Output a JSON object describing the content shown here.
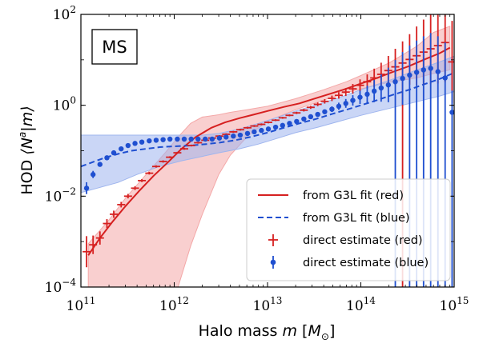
{
  "chart_data": {
    "type": "line",
    "panel_label": "MS",
    "xlabel": "Halo mass m [M_⊙]",
    "xlabel_parts": [
      "Halo mass ",
      "m",
      " [",
      "M",
      "⊙",
      "]"
    ],
    "ylabel": "HOD ⟨N^a|m⟩",
    "ylabel_parts": [
      "HOD ",
      "⟨N",
      "a",
      "|m⟩"
    ],
    "x_scale": "log",
    "y_scale": "log",
    "xlim": [
      100000000000.0,
      1000000000000000.0
    ],
    "ylim": [
      0.0001,
      100
    ],
    "x_ticks": [
      {
        "base": "10",
        "exp": "11",
        "value": 100000000000.0
      },
      {
        "base": "10",
        "exp": "12",
        "value": 1000000000000.0
      },
      {
        "base": "10",
        "exp": "13",
        "value": 10000000000000.0
      },
      {
        "base": "10",
        "exp": "14",
        "value": 100000000000000.0
      },
      {
        "base": "10",
        "exp": "15",
        "value": 1000000000000000.0
      }
    ],
    "y_ticks": [
      {
        "base": "10",
        "exp": "−4",
        "value": 0.0001
      },
      {
        "base": "10",
        "exp": "−2",
        "value": 0.01
      },
      {
        "base": "10",
        "exp": "0",
        "value": 1
      },
      {
        "base": "10",
        "exp": "2",
        "value": 100
      }
    ],
    "legend_position": "lower-right",
    "colors": {
      "red": "#d62020",
      "blue": "#1f4fd0",
      "red_band": "#f4a8a8",
      "blue_band": "#9fb5ee"
    },
    "series": [
      {
        "name": "from G3L fit (red)",
        "kind": "line",
        "style": "solid",
        "color": "#d62020",
        "x": [
          120000000000.0,
          160000000000.0,
          220000000000.0,
          300000000000.0,
          420000000000.0,
          600000000000.0,
          850000000000.0,
          1200000000000.0,
          1700000000000.0,
          2500000000000.0,
          3500000000000.0,
          5000000000000.0,
          7000000000000.0,
          10000000000000.0,
          15000000000000.0,
          22000000000000.0,
          30000000000000.0,
          45000000000000.0,
          65000000000000.0,
          100000000000000.0,
          150000000000000.0,
          220000000000000.0,
          330000000000000.0,
          500000000000000.0,
          700000000000000.0,
          900000000000000.0
        ],
        "y": [
          0.0005,
          0.0012,
          0.0028,
          0.006,
          0.013,
          0.028,
          0.055,
          0.11,
          0.2,
          0.32,
          0.42,
          0.52,
          0.62,
          0.75,
          0.92,
          1.1,
          1.35,
          1.75,
          2.2,
          3.0,
          4.0,
          5.4,
          7.3,
          10.5,
          14.0,
          18.5
        ]
      },
      {
        "name": "from G3L fit (blue)",
        "kind": "line",
        "style": "dashed",
        "color": "#1f4fd0",
        "x": [
          100000000000.0,
          130000000000.0,
          180000000000.0,
          250000000000.0,
          350000000000.0,
          500000000000.0,
          700000000000.0,
          1000000000000.0,
          1500000000000.0,
          2200000000000.0,
          3000000000000.0,
          4500000000000.0,
          6500000000000.0,
          10000000000000.0,
          15000000000000.0,
          22000000000000.0,
          33000000000000.0,
          50000000000000.0,
          70000000000000.0,
          100000000000000.0,
          150000000000000.0,
          220000000000000.0,
          330000000000000.0,
          500000000000000.0,
          700000000000000.0,
          1000000000000000.0
        ],
        "y": [
          0.045,
          0.055,
          0.07,
          0.085,
          0.1,
          0.11,
          0.12,
          0.125,
          0.13,
          0.14,
          0.15,
          0.17,
          0.2,
          0.25,
          0.32,
          0.4,
          0.5,
          0.65,
          0.8,
          1.0,
          1.3,
          1.7,
          2.2,
          3.0,
          3.8,
          5.2
        ]
      },
      {
        "name": "direct estimate (red)",
        "kind": "points",
        "marker": "plus",
        "color": "#d62020",
        "x": [
          115000000000.0,
          135000000000.0,
          160000000000.0,
          190000000000.0,
          225000000000.0,
          270000000000.0,
          320000000000.0,
          380000000000.0,
          450000000000.0,
          540000000000.0,
          640000000000.0,
          760000000000.0,
          900000000000.0,
          1080000000000.0,
          1280000000000.0,
          1520000000000.0,
          1800000000000.0,
          2150000000000.0,
          2550000000000.0,
          3050000000000.0,
          3600000000000.0,
          4300000000000.0,
          5100000000000.0,
          6100000000000.0,
          7200000000000.0,
          8600000000000.0,
          10200000000000.0,
          12200000000000.0,
          14500000000000.0,
          17200000000000.0,
          20500000000000.0,
          24500000000000.0,
          29000000000000.0,
          34500000000000.0,
          41000000000000.0,
          49000000000000.0,
          58000000000000.0,
          69000000000000.0,
          82000000000000.0,
          98000000000000.0,
          117000000000000.0,
          139000000000000.0,
          165000000000000.0,
          197000000000000.0,
          234000000000000.0,
          280000000000000.0,
          333000000000000.0,
          396000000000000.0,
          470000000000000.0,
          560000000000000.0,
          670000000000000.0,
          800000000000000.0,
          950000000000000.0
        ],
        "y": [
          0.0006,
          0.00085,
          0.0012,
          0.0025,
          0.004,
          0.0065,
          0.01,
          0.015,
          0.022,
          0.032,
          0.045,
          0.058,
          0.072,
          0.09,
          0.11,
          0.13,
          0.15,
          0.17,
          0.19,
          0.21,
          0.23,
          0.26,
          0.29,
          0.32,
          0.35,
          0.38,
          0.42,
          0.47,
          0.53,
          0.6,
          0.68,
          0.78,
          0.9,
          1.05,
          1.22,
          1.42,
          1.65,
          1.95,
          2.3,
          2.75,
          3.3,
          4.0,
          4.8,
          5.8,
          7.0,
          8.5,
          10.2,
          12.3,
          14.8,
          17.5,
          20.5,
          24.0,
          9.0
        ],
        "y_err_factor": [
          2.2,
          1.6,
          1.4,
          1.25,
          1.2,
          1.15,
          1.12,
          1.1,
          1.08,
          1.07,
          1.06,
          1.06,
          1.05,
          1.05,
          1.05,
          1.05,
          1.05,
          1.05,
          1.05,
          1.05,
          1.05,
          1.05,
          1.05,
          1.05,
          1.05,
          1.05,
          1.05,
          1.05,
          1.05,
          1.05,
          1.06,
          1.07,
          1.08,
          1.1,
          1.12,
          1.15,
          1.18,
          1.22,
          1.28,
          1.35,
          1.45,
          1.6,
          1.8,
          2.1,
          2.5,
          3.0,
          3.6,
          4.4,
          5.2,
          6.0,
          6.8,
          7.5,
          8.0
        ],
        "y_lower_to_axis": [
          false,
          false,
          false,
          false,
          false,
          false,
          false,
          false,
          false,
          false,
          false,
          false,
          false,
          false,
          false,
          false,
          false,
          false,
          false,
          false,
          false,
          false,
          false,
          false,
          false,
          false,
          false,
          false,
          false,
          false,
          false,
          false,
          false,
          false,
          false,
          false,
          false,
          false,
          false,
          false,
          false,
          false,
          false,
          false,
          false,
          true,
          false,
          false,
          false,
          false,
          false,
          false,
          false
        ]
      },
      {
        "name": "direct estimate (blue)",
        "kind": "points",
        "marker": "dot",
        "color": "#1f4fd0",
        "x": [
          115000000000.0,
          135000000000.0,
          160000000000.0,
          190000000000.0,
          225000000000.0,
          270000000000.0,
          320000000000.0,
          380000000000.0,
          450000000000.0,
          540000000000.0,
          640000000000.0,
          760000000000.0,
          900000000000.0,
          1080000000000.0,
          1280000000000.0,
          1520000000000.0,
          1800000000000.0,
          2150000000000.0,
          2550000000000.0,
          3050000000000.0,
          3600000000000.0,
          4300000000000.0,
          5100000000000.0,
          6100000000000.0,
          7200000000000.0,
          8600000000000.0,
          10200000000000.0,
          12200000000000.0,
          14500000000000.0,
          17200000000000.0,
          20500000000000.0,
          24500000000000.0,
          29000000000000.0,
          34500000000000.0,
          41000000000000.0,
          49000000000000.0,
          58000000000000.0,
          69000000000000.0,
          82000000000000.0,
          98000000000000.0,
          117000000000000.0,
          139000000000000.0,
          165000000000000.0,
          197000000000000.0,
          234000000000000.0,
          280000000000000.0,
          333000000000000.0,
          396000000000000.0,
          470000000000000.0,
          560000000000000.0,
          670000000000000.0,
          800000000000000.0,
          950000000000000.0
        ],
        "y": [
          0.015,
          0.03,
          0.05,
          0.07,
          0.09,
          0.11,
          0.13,
          0.145,
          0.155,
          0.165,
          0.17,
          0.175,
          0.18,
          0.18,
          0.18,
          0.18,
          0.18,
          0.18,
          0.18,
          0.19,
          0.2,
          0.21,
          0.22,
          0.24,
          0.26,
          0.28,
          0.3,
          0.33,
          0.36,
          0.4,
          0.44,
          0.5,
          0.56,
          0.63,
          0.72,
          0.82,
          0.95,
          1.1,
          1.28,
          1.5,
          1.75,
          2.05,
          2.4,
          2.8,
          3.3,
          3.9,
          4.6,
          5.3,
          6.0,
          6.5,
          5.5,
          4.0,
          0.7
        ],
        "y_err_factor": [
          1.35,
          1.2,
          1.12,
          1.08,
          1.06,
          1.05,
          1.05,
          1.05,
          1.05,
          1.05,
          1.05,
          1.05,
          1.05,
          1.05,
          1.05,
          1.05,
          1.05,
          1.05,
          1.05,
          1.05,
          1.05,
          1.05,
          1.05,
          1.05,
          1.05,
          1.05,
          1.05,
          1.05,
          1.05,
          1.05,
          1.06,
          1.07,
          1.08,
          1.1,
          1.12,
          1.15,
          1.2,
          1.25,
          1.3,
          1.4,
          1.55,
          1.75,
          2.0,
          2.4,
          3.0,
          3.8,
          4.5,
          5.0,
          5.5,
          6.0,
          6.0,
          6.0,
          3.0
        ],
        "y_lower_to_axis": [
          false,
          false,
          false,
          false,
          false,
          false,
          false,
          false,
          false,
          false,
          false,
          false,
          false,
          false,
          false,
          false,
          false,
          false,
          false,
          false,
          false,
          false,
          false,
          false,
          false,
          false,
          false,
          false,
          false,
          false,
          false,
          false,
          false,
          false,
          false,
          false,
          false,
          false,
          false,
          false,
          false,
          false,
          false,
          false,
          true,
          false,
          true,
          true,
          true,
          true,
          true,
          true,
          true
        ]
      }
    ],
    "bands": [
      {
        "color": "#f4a8a8",
        "x": [
          120000000000.0,
          200000000000.0,
          300000000000.0,
          500000000000.0,
          800000000000.0,
          1100000000000.0,
          1500000000000.0,
          2000000000000.0,
          3000000000000.0,
          4000000000000.0,
          6000000000000.0,
          10000000000000.0,
          20000000000000.0,
          40000000000000.0,
          70000000000000.0,
          100000000000000.0,
          200000000000000.0,
          400000000000000.0,
          600000000000000.0,
          900000000000000.0
        ],
        "y_low": [
          0.0001,
          0.0001,
          0.0001,
          0.0001,
          0.0001,
          0.0001,
          0.0008,
          0.004,
          0.03,
          0.08,
          0.2,
          0.45,
          0.8,
          1.3,
          1.9,
          2.3,
          3.2,
          4.0,
          5.0,
          6.0
        ],
        "y_high": [
          0.0009,
          0.003,
          0.009,
          0.03,
          0.09,
          0.2,
          0.4,
          0.55,
          0.62,
          0.7,
          0.8,
          0.95,
          1.4,
          2.2,
          3.3,
          4.5,
          8.5,
          20,
          40,
          55
        ]
      },
      {
        "color": "#9fb5ee",
        "x": [
          100000000000.0,
          150000000000.0,
          250000000000.0,
          400000000000.0,
          700000000000.0,
          1200000000000.0,
          2000000000000.0,
          3000000000000.0,
          5000000000000.0,
          8000000000000.0,
          13000000000000.0,
          20000000000000.0,
          35000000000000.0,
          60000000000000.0,
          100000000000000.0,
          200000000000000.0,
          400000000000000.0,
          700000000000000.0,
          1000000000000000.0
        ],
        "y_low": [
          0.012,
          0.015,
          0.02,
          0.03,
          0.045,
          0.06,
          0.075,
          0.09,
          0.11,
          0.14,
          0.19,
          0.25,
          0.33,
          0.45,
          0.6,
          0.85,
          1.2,
          1.6,
          2.0
        ],
        "y_high": [
          0.22,
          0.22,
          0.22,
          0.22,
          0.22,
          0.22,
          0.22,
          0.24,
          0.3,
          0.4,
          0.55,
          0.75,
          1.05,
          1.5,
          2.2,
          3.5,
          6.0,
          9.0,
          12.0
        ]
      }
    ]
  }
}
